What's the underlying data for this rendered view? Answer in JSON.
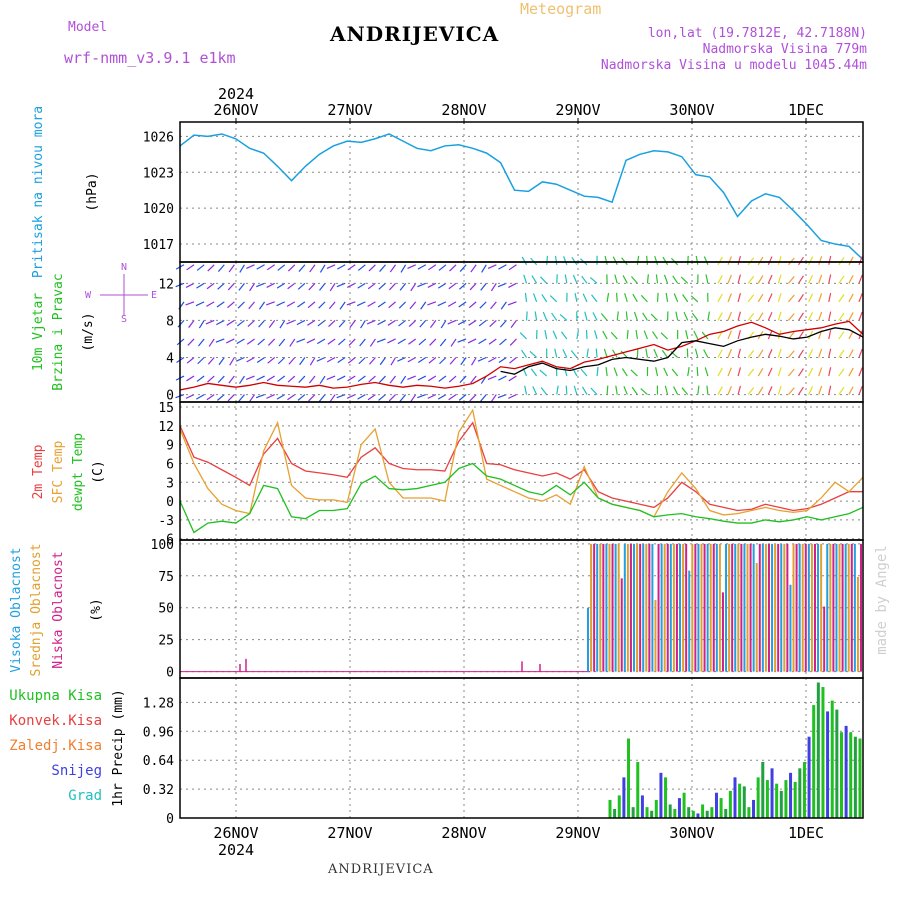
{
  "header": {
    "model_label": "Model",
    "model_name": "wrf-nmm_v3.9.1  e1km",
    "station": "ANDRIJEVICA",
    "meteogram_label": "Meteogram",
    "lonlat": "lon,lat (19.7812E, 42.7188N)",
    "elevation": "Nadmorska Visina 779m",
    "model_elevation": "Nadmorska Visina u modelu 1045.44m",
    "year": "2024"
  },
  "footer": {
    "station": "ANDRIJEVICA",
    "watermark": "made by Angel"
  },
  "colors": {
    "pressure": "#1aa0e0",
    "temp2m": "#e84040",
    "sfc": "#e8a030",
    "dewpt": "#20c020",
    "frame": "#000000",
    "grid": "#999999"
  },
  "chart_data": [
    {
      "type": "line",
      "title": "",
      "ylabel": [
        "Pritisak na nivou mora",
        "(hPa)"
      ],
      "ylim": [
        1015.5,
        1027.2
      ],
      "yticks": [
        "1026",
        "1023",
        "1020",
        "1017"
      ],
      "xticks": [
        "26NOV",
        "27NOV",
        "28NOV",
        "29NOV",
        "30NOV",
        "1DEC"
      ],
      "x_start": "25NOV 12h",
      "x_step_hours": 3,
      "series": [
        {
          "name": "",
          "color": "#1aa0e0",
          "values": [
            1025.2,
            1026.1,
            1026.0,
            1026.2,
            1025.8,
            1025.0,
            1024.6,
            1023.5,
            1022.3,
            1023.5,
            1024.5,
            1025.2,
            1025.6,
            1025.5,
            1025.8,
            1026.2,
            1025.6,
            1025.0,
            1024.8,
            1025.2,
            1025.3,
            1025.0,
            1024.6,
            1023.8,
            1021.5,
            1021.4,
            1022.2,
            1022.0,
            1021.5,
            1021.0,
            1020.9,
            1020.5,
            1024.0,
            1024.5,
            1024.8,
            1024.7,
            1024.3,
            1022.8,
            1022.6,
            1021.3,
            1019.3,
            1020.6,
            1021.2,
            1020.9,
            1019.8,
            1018.6,
            1017.3,
            1017.0,
            1016.8,
            1015.7
          ]
        }
      ],
      "grid": true
    },
    {
      "type": "line",
      "title": "",
      "ylabel": [
        "10m Vjetar",
        "Brzina i Pravac",
        "(m/s)"
      ],
      "direction_legend": [
        "N",
        "W",
        "E",
        "S"
      ],
      "ylim": [
        -0.8,
        14.3
      ],
      "yticks": [
        "12",
        "8",
        "4",
        "0"
      ],
      "series": [
        {
          "name": "",
          "color": "#d00000",
          "values": [
            0.5,
            0.8,
            1.2,
            1.0,
            0.8,
            1.0,
            1.3,
            1.0,
            0.9,
            0.8,
            1.0,
            0.7,
            0.8,
            1.1,
            1.3,
            1.0,
            0.8,
            1.0,
            0.9,
            0.7,
            0.9,
            1.2,
            2.0,
            3.0,
            2.8,
            3.2,
            3.6,
            3.0,
            2.8,
            3.5,
            3.8,
            4.2,
            4.6,
            5.0,
            5.4,
            4.8,
            5.2,
            5.8,
            6.5,
            6.8,
            7.4,
            7.8,
            7.2,
            6.5,
            6.8,
            7.0,
            7.2,
            7.6,
            7.9,
            6.5
          ]
        },
        {
          "name": "",
          "color": "#000000",
          "values": [
            null,
            null,
            null,
            null,
            null,
            null,
            null,
            null,
            null,
            null,
            null,
            null,
            null,
            null,
            null,
            null,
            null,
            null,
            null,
            null,
            null,
            null,
            null,
            2.5,
            2.2,
            3.0,
            3.4,
            2.8,
            2.6,
            3.0,
            3.2,
            3.8,
            4.0,
            3.8,
            3.6,
            4.0,
            5.6,
            5.8,
            5.5,
            5.2,
            5.8,
            6.2,
            6.5,
            6.3,
            6.0,
            6.2,
            6.8,
            7.2,
            7.0,
            6.2
          ]
        }
      ],
      "grid": true
    },
    {
      "type": "line",
      "title": "",
      "ylabel": [
        "2m Temp",
        "SFC Temp",
        "dewpt Temp",
        "(C)"
      ],
      "ylim": [
        -6.2,
        15.8
      ],
      "yticks": [
        "15",
        "12",
        "9",
        "6",
        "3",
        "0",
        "-3",
        "-6"
      ],
      "series": [
        {
          "name": "2m Temp",
          "color": "#e84040",
          "values": [
            12.0,
            7.0,
            6.2,
            5.0,
            3.8,
            2.5,
            7.5,
            10.0,
            6.0,
            4.8,
            4.5,
            4.2,
            3.8,
            7.0,
            8.5,
            6.0,
            5.2,
            5.0,
            5.0,
            4.8,
            9.5,
            12.5,
            6.0,
            5.8,
            5.0,
            4.5,
            4.0,
            4.5,
            3.5,
            5.0,
            1.5,
            0.5,
            0.0,
            -0.5,
            -1.0,
            0.5,
            3.0,
            1.5,
            -0.5,
            -1.0,
            -1.5,
            -1.3,
            -0.5,
            -1.0,
            -1.5,
            -1.2,
            -0.5,
            0.5,
            1.5,
            1.5
          ]
        },
        {
          "name": "SFC Temp",
          "color": "#e8a030",
          "values": [
            11.5,
            6.0,
            2.0,
            -0.5,
            -1.5,
            -2.0,
            8.0,
            12.5,
            2.5,
            0.5,
            0.2,
            0.2,
            -0.2,
            9.0,
            11.5,
            3.0,
            0.5,
            0.5,
            0.5,
            0.0,
            11.0,
            14.5,
            3.5,
            2.5,
            1.5,
            0.5,
            0.0,
            1.0,
            -0.5,
            5.5,
            0.5,
            -0.5,
            -1.0,
            -1.5,
            -2.5,
            1.5,
            4.5,
            2.0,
            -1.5,
            -2.2,
            -2.0,
            -1.5,
            -1.0,
            -1.5,
            -1.8,
            -1.5,
            0.5,
            3.0,
            1.5,
            3.8
          ]
        },
        {
          "name": "dewpt Temp",
          "color": "#20c020",
          "values": [
            0.0,
            -5.0,
            -3.5,
            -3.2,
            -3.5,
            -2.0,
            2.5,
            2.0,
            -2.5,
            -2.8,
            -1.5,
            -1.5,
            -1.2,
            2.8,
            4.0,
            2.0,
            1.8,
            2.0,
            2.5,
            3.0,
            5.2,
            6.0,
            4.0,
            3.5,
            2.5,
            1.5,
            1.0,
            2.5,
            1.0,
            3.0,
            0.5,
            -0.5,
            -1.0,
            -1.5,
            -2.5,
            -2.2,
            -2.0,
            -2.5,
            -2.8,
            -3.2,
            -3.5,
            -3.5,
            -3.0,
            -3.3,
            -3.0,
            -2.5,
            -3.0,
            -2.5,
            -2.0,
            -1.0
          ]
        }
      ],
      "grid": true
    },
    {
      "type": "bar",
      "title": "",
      "ylabel": [
        "Visoka Oblacnost",
        "Srednja Oblacnost",
        "Niska Oblacnost",
        "(%)"
      ],
      "ylim": [
        -5,
        103
      ],
      "yticks": [
        "100",
        "75",
        "50",
        "25",
        "0"
      ],
      "series": [
        {
          "name": "Visoka Oblacnost",
          "color": "#20a0e0"
        },
        {
          "name": "Srednja Oblacnost",
          "color": "#e0a030"
        },
        {
          "name": "Niska Oblacnost",
          "color": "#d0208a"
        }
      ],
      "values_note_hours": [
        0,
        78
      ],
      "mostly_full_after_hour": 78,
      "grid": true
    },
    {
      "type": "bar",
      "title": "",
      "ylabel": [
        "1hr Precip (mm)"
      ],
      "legend": [
        {
          "name": "Ukupna Kisa",
          "color": "#20c020"
        },
        {
          "name": "Konvek.Kisa",
          "color": "#e84040"
        },
        {
          "name": "Zaledj.Kisa",
          "color": "#f08030"
        },
        {
          "name": "Snijeg",
          "color": "#4040e0"
        },
        {
          "name": "Grad",
          "color": "#20c0c0"
        }
      ],
      "ylim": [
        0,
        1.55
      ],
      "yticks": [
        "1.28",
        "0.96",
        "0.64",
        "0.32",
        "0"
      ],
      "series": [
        {
          "name": "Ukupna Kisa",
          "color": "#20a040",
          "values": [
            0.2,
            0.1,
            0.25,
            0.45,
            0.88,
            0.12,
            0.62,
            0.25,
            0.12,
            0.08,
            0.2,
            0.5,
            0.45,
            0.15,
            0.1,
            0.22,
            0.28,
            0.12,
            0.08,
            0.05,
            0.15,
            0.08,
            0.12,
            0.28,
            0.22,
            0.1,
            0.3,
            0.45,
            0.38,
            0.35,
            0.12,
            0.2,
            0.45,
            0.62,
            0.42,
            0.55,
            0.38,
            0.3,
            0.42,
            0.5,
            0.4,
            0.55,
            0.62,
            0.9,
            1.25,
            1.5,
            1.45,
            1.18,
            1.3,
            1.2,
            0.95,
            1.02,
            0.95,
            0.9,
            0.88
          ]
        }
      ],
      "grid": true
    }
  ]
}
